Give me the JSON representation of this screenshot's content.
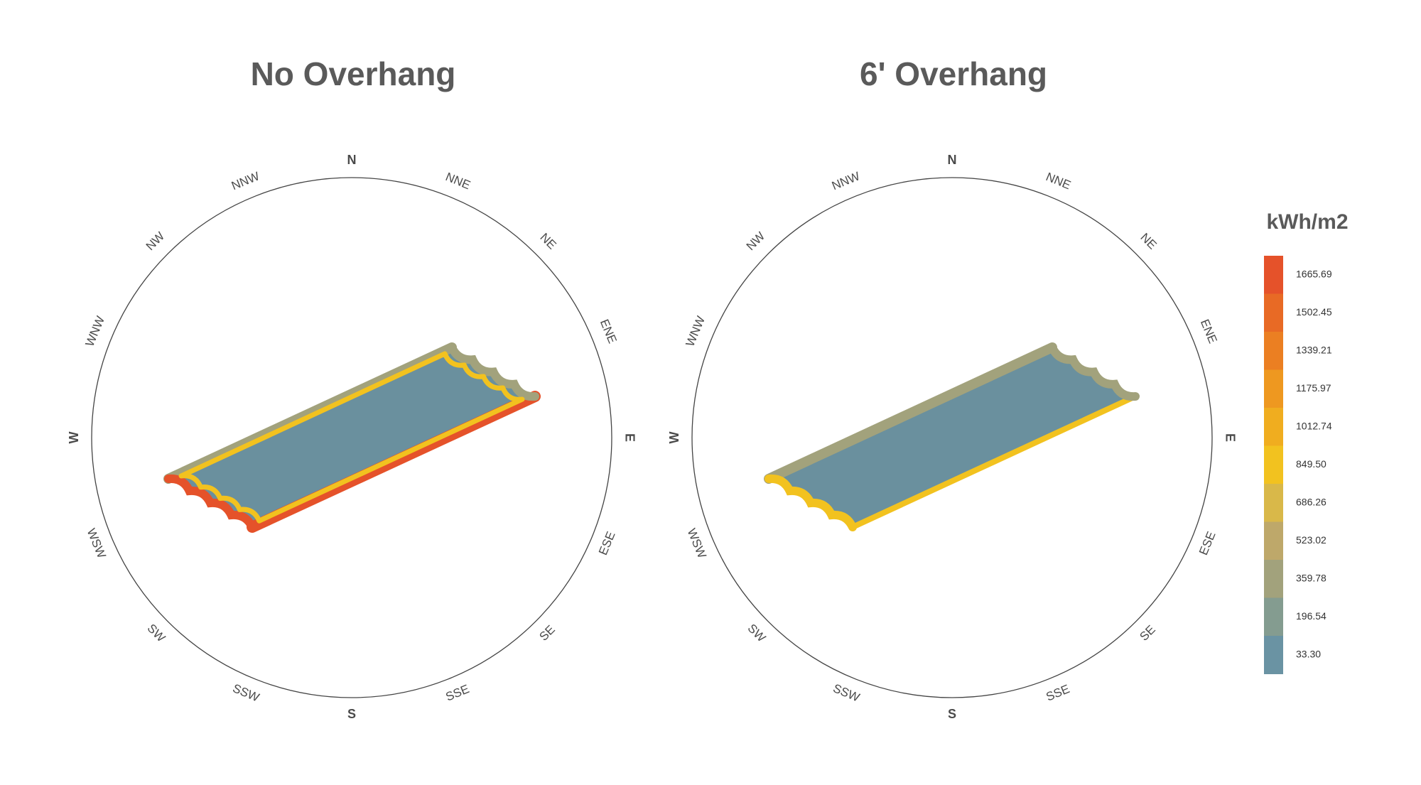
{
  "panels": [
    {
      "title": "No Overhang"
    },
    {
      "title": "6' Overhang"
    }
  ],
  "compass": {
    "directions": [
      "N",
      "NNE",
      "NE",
      "ENE",
      "E",
      "ESE",
      "SE",
      "SSE",
      "S",
      "SSW",
      "SW",
      "WSW",
      "W",
      "WNW",
      "NW",
      "NNW"
    ]
  },
  "legend": {
    "title": "kWh/m2",
    "entries": [
      {
        "label": "1665.69",
        "color": "#e5522a"
      },
      {
        "label": "1502.45",
        "color": "#e86a25"
      },
      {
        "label": "1339.21",
        "color": "#eb7f22"
      },
      {
        "label": "1175.97",
        "color": "#ee9820"
      },
      {
        "label": "1012.74",
        "color": "#f0ad1f"
      },
      {
        "label": "849.50",
        "color": "#f2c21f"
      },
      {
        "label": "686.26",
        "color": "#d9b849"
      },
      {
        "label": "523.02",
        "color": "#bea86a"
      },
      {
        "label": "359.78",
        "color": "#a2a27c"
      },
      {
        "label": "196.54",
        "color": "#849c90"
      },
      {
        "label": "33.30",
        "color": "#6a93a3"
      }
    ]
  }
}
